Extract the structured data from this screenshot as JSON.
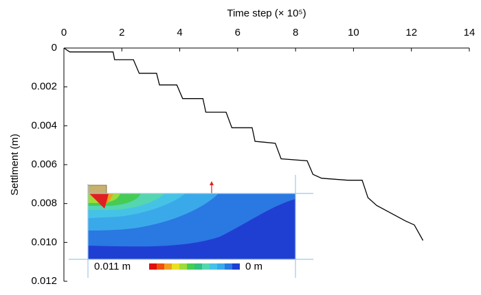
{
  "chart_data": {
    "type": "line",
    "x_label": "Time step (× 10⁵)",
    "y_label": "Settlment (m)",
    "x": [
      0,
      0.2,
      1.1,
      1.7,
      1.75,
      2.4,
      2.6,
      3.2,
      3.3,
      3.9,
      4.1,
      4.8,
      4.9,
      5.6,
      5.8,
      6.5,
      6.6,
      7.3,
      7.5,
      8.4,
      8.6,
      8.9,
      9.8,
      10.3,
      10.5,
      10.8,
      11.3,
      11.8,
      12.1,
      12.4
    ],
    "values": [
      0,
      0.0002,
      0.0002,
      0.0002,
      0.0006,
      0.0006,
      0.0013,
      0.0013,
      0.0019,
      0.0019,
      0.0026,
      0.0026,
      0.0033,
      0.0033,
      0.0041,
      0.0041,
      0.0048,
      0.0049,
      0.0057,
      0.0058,
      0.0065,
      0.0067,
      0.0068,
      0.0068,
      0.0077,
      0.0081,
      0.0085,
      0.0089,
      0.0091,
      0.0099
    ],
    "color": "#000000",
    "xlim": [
      0,
      14
    ],
    "xticks": [
      0,
      2,
      4,
      6,
      8,
      10,
      12,
      14
    ],
    "ylim": [
      0,
      0.012
    ],
    "y_inverted": true,
    "yticks": [
      0,
      0.002,
      0.004,
      0.006,
      0.008,
      {
        "value": 0.01,
        "label": "0.010"
      },
      0.012
    ],
    "inset_colorbar_labels": [
      "0.011 m",
      "0 m"
    ]
  }
}
